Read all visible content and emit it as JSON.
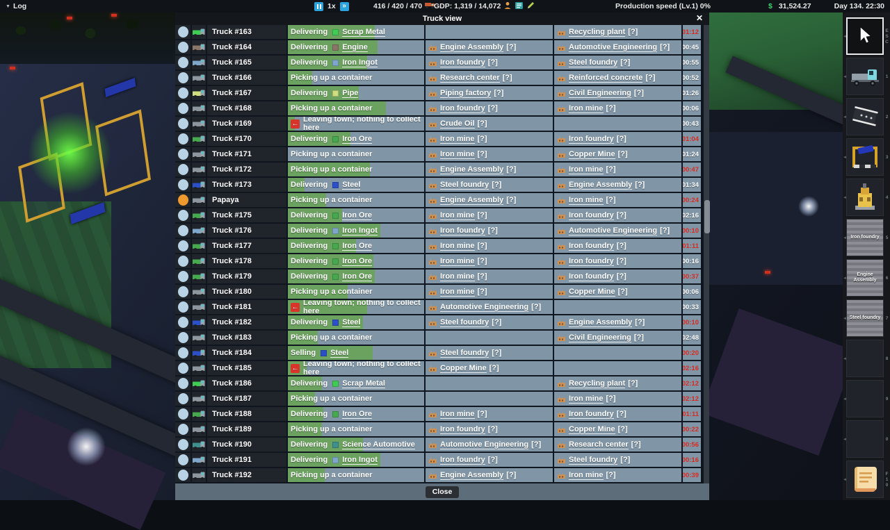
{
  "top_bar": {
    "log_label": "Log",
    "speed": "1x",
    "vehicles": "416 / 420 / 470",
    "gdp": "GDP: 1,319 / 14,072",
    "production_speed": "Production speed (Lv.1) 0%",
    "currency": "$",
    "money": "31,524.27",
    "datetime": "Day 134. 22:30"
  },
  "window": {
    "title": "Truck view",
    "close_icon": "✕",
    "close_label": "Close"
  },
  "colors": {
    "cell_bg": "#8096a7",
    "progress_green": "#6ba25f",
    "alert_red": "#d92a1f",
    "marker_blue": "#b9d3e6",
    "marker_orange": "#ef9a2e"
  },
  "table": {
    "help_suffix": "[?]",
    "rows": [
      {
        "name": "Truck #163",
        "marker": "#b9d3e6",
        "status": "Delivering",
        "cargo": "Scrap Metal",
        "cargo_color": "#3fcb54",
        "leaving": false,
        "progress": 64,
        "source": "",
        "dest": "Recycling plant",
        "time": "01:12",
        "alert": true
      },
      {
        "name": "Truck #164",
        "marker": "#b9d3e6",
        "status": "Delivering",
        "cargo": "Engine",
        "cargo_color": "#8a7668",
        "leaving": false,
        "progress": 66,
        "source": "Engine Assembly",
        "dest": "Automotive Engineering",
        "time": "00:45",
        "alert": false
      },
      {
        "name": "Truck #165",
        "marker": "#b9d3e6",
        "status": "Delivering",
        "cargo": "Iron Ingot",
        "cargo_color": "#7fa7cc",
        "leaving": false,
        "progress": 58,
        "source": "Iron foundry",
        "dest": "Steel foundry",
        "time": "00:55",
        "alert": false
      },
      {
        "name": "Truck #166",
        "marker": "#b9d3e6",
        "status": "Picking up a container",
        "cargo": null,
        "cargo_color": null,
        "leaving": false,
        "progress": 18,
        "source": "Research center",
        "dest": "Reinforced concrete",
        "time": "00:52",
        "alert": false
      },
      {
        "name": "Truck #167",
        "marker": "#b9d3e6",
        "status": "Delivering",
        "cargo": "Pipe",
        "cargo_color": "#cfdc7f",
        "leaving": false,
        "progress": 52,
        "source": "Piping factory",
        "dest": "Civil Engineering",
        "time": "01:26",
        "alert": false
      },
      {
        "name": "Truck #168",
        "marker": "#b9d3e6",
        "status": "Picking up a container",
        "cargo": null,
        "cargo_color": null,
        "leaving": false,
        "progress": 72,
        "source": "Iron foundry",
        "dest": "Iron mine",
        "time": "00:06",
        "alert": false
      },
      {
        "name": "Truck #169",
        "marker": "#b9d3e6",
        "status": "Leaving town; nothing to collect here",
        "cargo": null,
        "cargo_color": null,
        "leaving": true,
        "progress": 5,
        "source": "Crude Oil",
        "dest": "",
        "time": "00:43",
        "alert": false
      },
      {
        "name": "Truck #170",
        "marker": "#b9d3e6",
        "status": "Delivering",
        "cargo": "Iron Ore",
        "cargo_color": "#46a94f",
        "leaving": false,
        "progress": 46,
        "source": "Iron mine",
        "dest": "Iron foundry",
        "time": "01:04",
        "alert": true
      },
      {
        "name": "Truck #171",
        "marker": "#b9d3e6",
        "status": "Picking up a container",
        "cargo": null,
        "cargo_color": null,
        "leaving": false,
        "progress": 0,
        "source": "Iron mine",
        "dest": "Copper Mine",
        "time": "01:24",
        "alert": false
      },
      {
        "name": "Truck #172",
        "marker": "#b9d3e6",
        "status": "Picking up a container",
        "cargo": null,
        "cargo_color": null,
        "leaving": false,
        "progress": 60,
        "source": "Engine Assembly",
        "dest": "Iron mine",
        "time": "00:47",
        "alert": true
      },
      {
        "name": "Truck #173",
        "marker": "#b9d3e6",
        "status": "Delivering",
        "cargo": "Steel",
        "cargo_color": "#2b50c8",
        "leaving": false,
        "progress": 12,
        "source": "Steel foundry",
        "dest": "Engine Assembly",
        "time": "01:34",
        "alert": false
      },
      {
        "name": "Papaya",
        "marker": "#ef9a2e",
        "status": "Picking up a container",
        "cargo": null,
        "cargo_color": null,
        "leaving": false,
        "progress": 28,
        "source": "Engine Assembly",
        "dest": "Iron mine",
        "time": "00:24",
        "alert": true
      },
      {
        "name": "Truck #175",
        "marker": "#b9d3e6",
        "status": "Delivering",
        "cargo": "Iron Ore",
        "cargo_color": "#46a94f",
        "leaving": false,
        "progress": 40,
        "source": "Iron mine",
        "dest": "Iron foundry",
        "time": "02:16",
        "alert": false
      },
      {
        "name": "Truck #176",
        "marker": "#b9d3e6",
        "status": "Delivering",
        "cargo": "Iron Ingot",
        "cargo_color": "#7fa7cc",
        "leaving": false,
        "progress": 68,
        "source": "Iron foundry",
        "dest": "Automotive Engineering",
        "time": "00:10",
        "alert": true
      },
      {
        "name": "Truck #177",
        "marker": "#b9d3e6",
        "status": "Delivering",
        "cargo": "Iron Ore",
        "cargo_color": "#46a94f",
        "leaving": false,
        "progress": 50,
        "source": "Iron mine",
        "dest": "Iron foundry",
        "time": "01:11",
        "alert": true
      },
      {
        "name": "Truck #178",
        "marker": "#b9d3e6",
        "status": "Delivering",
        "cargo": "Iron Ore",
        "cargo_color": "#46a94f",
        "leaving": false,
        "progress": 63,
        "source": "Iron mine",
        "dest": "Iron foundry",
        "time": "00:16",
        "alert": false
      },
      {
        "name": "Truck #179",
        "marker": "#b9d3e6",
        "status": "Delivering",
        "cargo": "Iron Ore",
        "cargo_color": "#46a94f",
        "leaving": false,
        "progress": 64,
        "source": "Iron mine",
        "dest": "Iron foundry",
        "time": "00:37",
        "alert": true
      },
      {
        "name": "Truck #180",
        "marker": "#b9d3e6",
        "status": "Picking up a container",
        "cargo": null,
        "cargo_color": null,
        "leaving": false,
        "progress": 44,
        "source": "Iron mine",
        "dest": "Copper Mine",
        "time": "00:06",
        "alert": false
      },
      {
        "name": "Truck #181",
        "marker": "#b9d3e6",
        "status": "Leaving town; nothing to collect here",
        "cargo": null,
        "cargo_color": null,
        "leaving": true,
        "progress": 58,
        "source": "Automotive Engineering",
        "dest": "",
        "time": "00:33",
        "alert": false
      },
      {
        "name": "Truck #182",
        "marker": "#b9d3e6",
        "status": "Delivering",
        "cargo": "Steel",
        "cargo_color": "#2b50c8",
        "leaving": false,
        "progress": 55,
        "source": "Steel foundry",
        "dest": "Engine Assembly",
        "time": "00:10",
        "alert": true
      },
      {
        "name": "Truck #183",
        "marker": "#b9d3e6",
        "status": "Picking up a container",
        "cargo": null,
        "cargo_color": null,
        "leaving": false,
        "progress": 22,
        "source": "",
        "dest": "Civil Engineering",
        "time": "02:48",
        "alert": false
      },
      {
        "name": "Truck #184",
        "marker": "#b9d3e6",
        "status": "Selling",
        "cargo": "Steel",
        "cargo_color": "#2b50c8",
        "leaving": false,
        "progress": 62,
        "source": "Steel foundry",
        "dest": "",
        "time": "00:20",
        "alert": true
      },
      {
        "name": "Truck #185",
        "marker": "#b9d3e6",
        "status": "Leaving town; nothing to collect here",
        "cargo": null,
        "cargo_color": null,
        "leaving": true,
        "progress": 14,
        "source": "Copper Mine",
        "dest": "",
        "time": "02:16",
        "alert": true
      },
      {
        "name": "Truck #186",
        "marker": "#b9d3e6",
        "status": "Delivering",
        "cargo": "Scrap Metal",
        "cargo_color": "#3fcb54",
        "leaving": false,
        "progress": 25,
        "source": "",
        "dest": "Recycling plant",
        "time": "02:12",
        "alert": true
      },
      {
        "name": "Truck #187",
        "marker": "#b9d3e6",
        "status": "Picking up a container",
        "cargo": null,
        "cargo_color": null,
        "leaving": false,
        "progress": 20,
        "source": "",
        "dest": "Iron mine",
        "time": "02:12",
        "alert": true
      },
      {
        "name": "Truck #188",
        "marker": "#b9d3e6",
        "status": "Delivering",
        "cargo": "Iron Ore",
        "cargo_color": "#46a94f",
        "leaving": false,
        "progress": 26,
        "source": "Iron mine",
        "dest": "Iron foundry",
        "time": "01:11",
        "alert": true
      },
      {
        "name": "Truck #189",
        "marker": "#b9d3e6",
        "status": "Picking up a container",
        "cargo": null,
        "cargo_color": null,
        "leaving": false,
        "progress": 25,
        "source": "Iron foundry",
        "dest": "Copper Mine",
        "time": "00:22",
        "alert": true
      },
      {
        "name": "Truck #190",
        "marker": "#b9d3e6",
        "status": "Delivering",
        "cargo": "Science Automotive",
        "cargo_color": "#3f8f8f",
        "leaving": false,
        "progress": 55,
        "source": "Automotive Engineering",
        "dest": "Research center",
        "time": "00:56",
        "alert": true
      },
      {
        "name": "Truck #191",
        "marker": "#b9d3e6",
        "status": "Delivering",
        "cargo": "Iron Ingot",
        "cargo_color": "#7fa7cc",
        "leaving": false,
        "progress": 68,
        "source": "Iron foundry",
        "dest": "Steel foundry",
        "time": "00:16",
        "alert": true
      },
      {
        "name": "Truck #192",
        "marker": "#b9d3e6",
        "status": "Picking up a container",
        "cargo": null,
        "cargo_color": null,
        "leaving": false,
        "progress": 27,
        "source": "Engine Assembly",
        "dest": "Iron mine",
        "time": "00:39",
        "alert": true
      }
    ]
  },
  "sidebar": {
    "items": [
      {
        "type": "cursor",
        "name": "select-tool",
        "hotkey": "ESC",
        "selected": true,
        "label": ""
      },
      {
        "type": "truck",
        "name": "vehicles-tool",
        "hotkey": "1",
        "selected": false,
        "label": ""
      },
      {
        "type": "road",
        "name": "road-tool",
        "hotkey": "2",
        "selected": false,
        "label": ""
      },
      {
        "type": "construction",
        "name": "construction-tool",
        "hotkey": "3",
        "selected": false,
        "label": ""
      },
      {
        "type": "drill",
        "name": "mine-tool",
        "hotkey": "4",
        "selected": false,
        "label": ""
      },
      {
        "type": "blueprint",
        "name": "blueprint-iron-foundry",
        "hotkey": "5",
        "selected": false,
        "label": "Iron foundry"
      },
      {
        "type": "blueprint",
        "name": "blueprint-engine-assembly",
        "hotkey": "6",
        "selected": false,
        "label": "Engine Assembly"
      },
      {
        "type": "blueprint",
        "name": "blueprint-steel-foundry",
        "hotkey": "7",
        "selected": false,
        "label": "Steel foundry"
      },
      {
        "type": "empty",
        "name": "empty-slot",
        "hotkey": "8",
        "selected": false,
        "label": ""
      },
      {
        "type": "empty",
        "name": "empty-slot",
        "hotkey": "9",
        "selected": false,
        "label": ""
      },
      {
        "type": "empty",
        "name": "empty-slot",
        "hotkey": "0",
        "selected": false,
        "label": ""
      },
      {
        "type": "scroll",
        "name": "contracts-scroll",
        "hotkey": "F10",
        "selected": false,
        "label": ""
      }
    ]
  }
}
